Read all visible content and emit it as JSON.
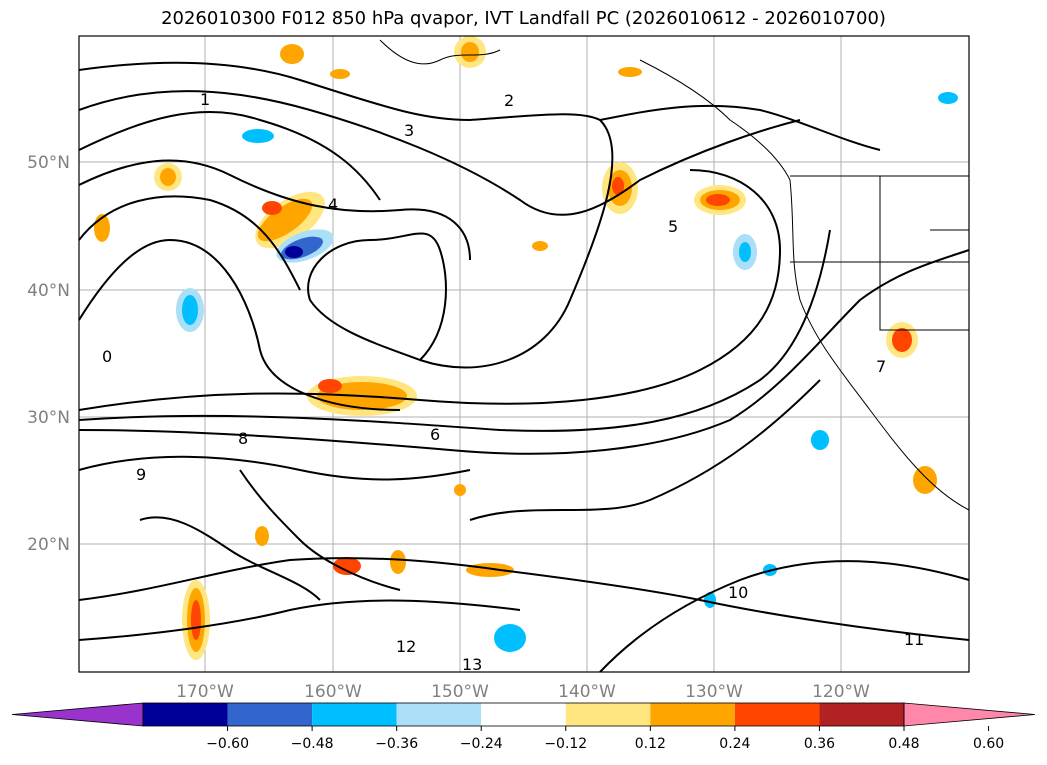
{
  "title": "2026010300 F012 850 hPa qvapor, IVT Landfall PC (2026010612 - 2026010700)",
  "lat_labels": [
    "50°N",
    "40°N",
    "30°N",
    "20°N"
  ],
  "lon_labels": [
    "170°W",
    "160°W",
    "150°W",
    "140°W",
    "130°W",
    "120°W"
  ],
  "colorbar": {
    "tick_labels": [
      "−0.60",
      "−0.48",
      "−0.36",
      "−0.24",
      "−0.12",
      "0.12",
      "0.24",
      "0.36",
      "0.48",
      "0.60"
    ],
    "colors": [
      "#9933cc",
      "#000099",
      "#3366cc",
      "#00bfff",
      "#aadff7",
      "#ffffff",
      "#ffe680",
      "#ffa500",
      "#ff4500",
      "#b22222",
      "#ff88aa"
    ]
  },
  "contour_labels": [
    "1",
    "2",
    "3",
    "4",
    "5",
    "6",
    "7",
    "8",
    "9",
    "10",
    "11",
    "12",
    "13",
    "0"
  ]
}
